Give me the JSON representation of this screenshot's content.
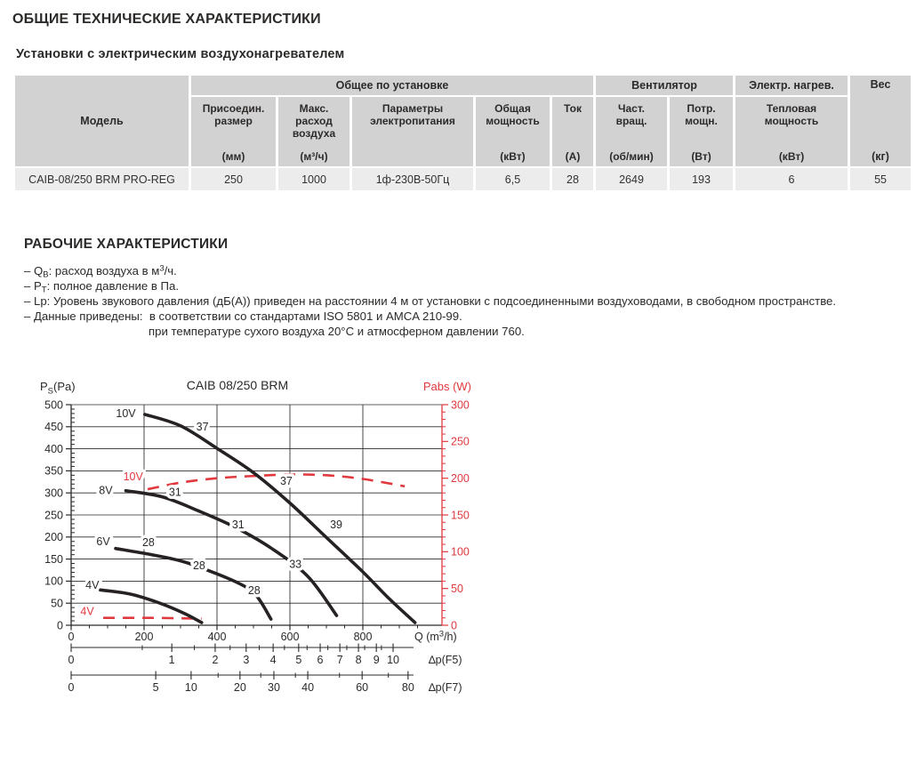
{
  "page": {
    "title": "ОБЩИЕ ТЕХНИЧЕСКИЕ ХАРАКТЕРИСТИКИ",
    "subtitle": "Установки с электрическим воздухонагревателем"
  },
  "table": {
    "model_header": "Модель",
    "group_headers": [
      {
        "label": "Общее по установке",
        "colspan": 5
      },
      {
        "label": "Вентилятор",
        "colspan": 2
      },
      {
        "label": "Электр. нагрев.",
        "colspan": 1
      }
    ],
    "weight_header": {
      "name": "Вес",
      "unit": "(кг)"
    },
    "columns": [
      {
        "name": "Присоедин.\nразмер",
        "unit": "(мм)"
      },
      {
        "name": "Макс.\nрасход\nвоздуха",
        "unit": "(м³/ч)"
      },
      {
        "name": "Параметры\nэлектропитания",
        "unit": ""
      },
      {
        "name": "Общая\nмощность",
        "unit": "(кВт)"
      },
      {
        "name": "Ток",
        "unit": "(А)"
      },
      {
        "name": "Част.\nвращ.",
        "unit": "(об/мин)"
      },
      {
        "name": "Потр.\nмощн.",
        "unit": "(Вт)"
      },
      {
        "name": "Тепловая\nмощность",
        "unit": "(кВт)"
      }
    ],
    "rows": [
      [
        "CAIB-08/250 BRM PRO-REG",
        "250",
        "1000",
        "1ф-230В-50Гц",
        "6,5",
        "28",
        "2649",
        "193",
        "6",
        "55"
      ]
    ]
  },
  "notes": {
    "title": "РАБОЧИЕ ХАРАКТЕРИСТИКИ",
    "lines": [
      {
        "indent": false,
        "segments": [
          {
            "t": "– Q"
          },
          {
            "t": "В",
            "sub": true
          },
          {
            "t": ": расход воздуха в м"
          },
          {
            "t": "3",
            "sup": true
          },
          {
            "t": "/ч."
          }
        ]
      },
      {
        "indent": false,
        "segments": [
          {
            "t": "– P"
          },
          {
            "t": "Т",
            "sub": true
          },
          {
            "t": ": полное давление в Па."
          }
        ]
      },
      {
        "indent": false,
        "segments": [
          {
            "t": "– Lp: Уровень звукового давления (дБ(А)) приведен на расстоянии 4 м от установки с подсоединенными воздуховодами, в свободном пространстве."
          }
        ]
      },
      {
        "indent": false,
        "segments": [
          {
            "t": "– Данные приведены:  в соответствии со стандартами ISO 5801 и AMCA 210-99."
          }
        ]
      },
      {
        "indent": true,
        "segments": [
          {
            "t": "при температуре сухого воздуха 20°C и атмосферном давлении 760."
          }
        ]
      }
    ]
  },
  "chart_data": {
    "type": "line",
    "title": "CAIB 08/250 BRM",
    "ink": "#2b2a29",
    "curve_color": "#262223",
    "y_left": {
      "label_segments": [
        {
          "t": "P"
        },
        {
          "t": "S",
          "sub": true
        },
        {
          "t": "(Pa)"
        }
      ],
      "min": 0,
      "max": 500,
      "step": 50,
      "minor": 10
    },
    "y_right": {
      "label": "Pabs (W)",
      "min": 0,
      "max": 300,
      "step": 50,
      "minor": 10,
      "color": "#e0393e"
    },
    "x": {
      "label_segments": [
        {
          "t": "Q (m"
        },
        {
          "t": "3",
          "sup": true
        },
        {
          "t": "/h)"
        }
      ],
      "min": 0,
      "max": 1017,
      "ticks": [
        0,
        200,
        400,
        600,
        800
      ],
      "gridlines": [
        200,
        400,
        600,
        800
      ],
      "minor_step": 50
    },
    "pressure_curves": [
      {
        "name": "10V",
        "points": [
          [
            202,
            478
          ],
          [
            300,
            452
          ],
          [
            400,
            401
          ],
          [
            500,
            346
          ],
          [
            600,
            277
          ],
          [
            700,
            199
          ],
          [
            800,
            121
          ],
          [
            870,
            62
          ],
          [
            943,
            6
          ]
        ]
      },
      {
        "name": "8V",
        "points": [
          [
            150,
            305
          ],
          [
            250,
            291
          ],
          [
            350,
            259
          ],
          [
            450,
            222
          ],
          [
            550,
            174
          ],
          [
            650,
            110
          ],
          [
            728,
            22
          ]
        ]
      },
      {
        "name": "6V",
        "points": [
          [
            122,
            174
          ],
          [
            220,
            160
          ],
          [
            300,
            146
          ],
          [
            354,
            131
          ],
          [
            450,
            99
          ],
          [
            505,
            70
          ],
          [
            548,
            14
          ]
        ]
      },
      {
        "name": "4V",
        "points": [
          [
            80,
            80
          ],
          [
            160,
            71
          ],
          [
            240,
            51
          ],
          [
            310,
            27
          ],
          [
            358,
            6
          ]
        ]
      }
    ],
    "power_curves": [
      {
        "name": "10V",
        "points_w": [
          [
            210,
            185
          ],
          [
            300,
            194
          ],
          [
            400,
            200
          ],
          [
            500,
            203
          ],
          [
            600,
            205
          ],
          [
            700,
            204
          ],
          [
            800,
            199
          ],
          [
            915,
            189
          ]
        ]
      },
      {
        "name": "4V",
        "points_w": [
          [
            88,
            10
          ],
          [
            220,
            10
          ],
          [
            358,
            9
          ]
        ]
      }
    ],
    "curve_labels": [
      {
        "text": "10V",
        "q": 150,
        "p": 480,
        "c": "black"
      },
      {
        "text": "37",
        "q": 360,
        "p": 450,
        "c": "black"
      },
      {
        "text": "37",
        "q": 590,
        "p": 327,
        "c": "black"
      },
      {
        "text": "39",
        "q": 727,
        "p": 228,
        "c": "black"
      },
      {
        "text": "8V",
        "q": 95,
        "p": 306,
        "c": "black"
      },
      {
        "text": "31",
        "q": 285,
        "p": 302,
        "c": "black"
      },
      {
        "text": "31",
        "q": 458,
        "p": 228,
        "c": "black"
      },
      {
        "text": "33",
        "q": 615,
        "p": 139,
        "c": "black"
      },
      {
        "text": "6V",
        "q": 88,
        "p": 190,
        "c": "black"
      },
      {
        "text": "28",
        "q": 212,
        "p": 188,
        "c": "black"
      },
      {
        "text": "28",
        "q": 351,
        "p": 135,
        "c": "black"
      },
      {
        "text": "28",
        "q": 502,
        "p": 79,
        "c": "black"
      },
      {
        "text": "4V",
        "q": 58,
        "p": 91,
        "c": "black"
      },
      {
        "text": "10V",
        "q": 170,
        "p": 337,
        "c": "red"
      },
      {
        "text": "4V",
        "q": 44,
        "p": 32,
        "c": "red"
      }
    ],
    "x_axis2": {
      "label": "∆p(F5)",
      "ticks": [
        {
          "v": "0",
          "q": 0
        },
        {
          "v": "1",
          "q": 276
        },
        {
          "v": "2",
          "q": 395
        },
        {
          "v": "3",
          "q": 480
        },
        {
          "v": "4",
          "q": 554
        },
        {
          "v": "5",
          "q": 624
        },
        {
          "v": "6",
          "q": 683
        },
        {
          "v": "7",
          "q": 737
        },
        {
          "v": "8",
          "q": 788
        },
        {
          "v": "9",
          "q": 837
        },
        {
          "v": "10",
          "q": 883
        }
      ],
      "minor_q": [
        195,
        338,
        436,
        516,
        585,
        647,
        704,
        756,
        805,
        851
      ]
    },
    "x_axis3": {
      "label": "∆p(F7)",
      "ticks": [
        {
          "v": "0",
          "q": 0
        },
        {
          "v": "5",
          "q": 232
        },
        {
          "v": "10",
          "q": 329
        },
        {
          "v": "20",
          "q": 463
        },
        {
          "v": "30",
          "q": 556
        },
        {
          "v": "40",
          "q": 649
        },
        {
          "v": "60",
          "q": 798
        },
        {
          "v": "80",
          "q": 924
        }
      ],
      "minor_q": [
        403,
        520,
        615,
        736,
        870
      ]
    }
  }
}
